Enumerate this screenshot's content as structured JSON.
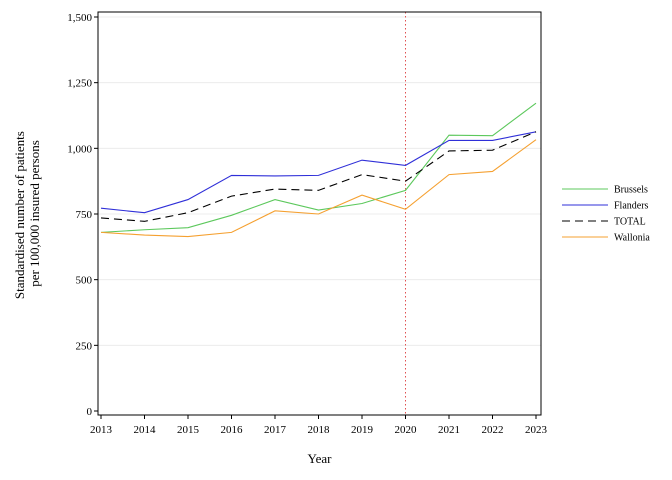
{
  "chart_data": {
    "type": "line",
    "xlabel": "Year",
    "ylabel_lines": [
      "Standardised number of patients",
      "per 100,000 insured persons"
    ],
    "x": [
      2013,
      2014,
      2015,
      2016,
      2017,
      2018,
      2019,
      2020,
      2021,
      2022,
      2023
    ],
    "xlim": [
      2013,
      2023
    ],
    "ylim": [
      0,
      1500
    ],
    "yticks": [
      0,
      250,
      500,
      750,
      1000,
      1250,
      1500
    ],
    "ytick_labels": [
      "0",
      "250",
      "500",
      "750",
      "1,000",
      "1,250",
      "1,500"
    ],
    "xtick_labels": [
      "2013",
      "2014",
      "2015",
      "2016",
      "2017",
      "2018",
      "2019",
      "2020",
      "2021",
      "2022",
      "2023"
    ],
    "grid": "horizontal",
    "reference_line_x": 2020,
    "legend_position": "right",
    "series": [
      {
        "name": "Brussels",
        "color": "#5cc85c",
        "dash": "solid",
        "values": [
          680,
          690,
          698,
          745,
          805,
          765,
          790,
          840,
          1050,
          1048,
          1172
        ]
      },
      {
        "name": "Flanders",
        "color": "#2f2fd8",
        "dash": "solid",
        "values": [
          772,
          755,
          805,
          897,
          895,
          897,
          955,
          935,
          1030,
          1030,
          1063
        ]
      },
      {
        "name": "TOTAL",
        "color": "#000000",
        "dash": "dashed",
        "values": [
          735,
          722,
          755,
          818,
          845,
          840,
          900,
          875,
          990,
          993,
          1063
        ]
      },
      {
        "name": "Wallonia",
        "color": "#f5a030",
        "dash": "solid",
        "values": [
          680,
          670,
          664,
          680,
          762,
          750,
          822,
          768,
          900,
          912,
          1033
        ]
      }
    ]
  }
}
